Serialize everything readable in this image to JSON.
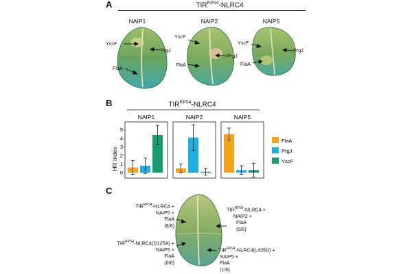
{
  "panel_a": {
    "letter": "A",
    "header_main": "TIR",
    "header_sup": "RPS4",
    "header_rest": "-NLRC4",
    "leaves": [
      {
        "title": "NAIP1",
        "labels": [
          "YscF",
          "PrgJ",
          "FlaA"
        ]
      },
      {
        "title": "NAIP2",
        "labels": [
          "YscF",
          "PrgJ",
          "FlaA"
        ]
      },
      {
        "title": "NAIP5",
        "labels": [
          "YscF",
          "PrgJ",
          "FlaA"
        ]
      }
    ]
  },
  "panel_b": {
    "letter": "B",
    "header_main": "TIR",
    "header_sup": "RPS4",
    "header_rest": "-NLRC4",
    "ylabel": "HR Index",
    "yticks": [
      "0",
      "1",
      "2",
      "3",
      "4",
      "5"
    ],
    "legend": [
      "FlaA",
      "PrgJ",
      "YscF"
    ]
  },
  "chart_data": {
    "type": "bar",
    "ylabel": "HR Index",
    "ylim": [
      0,
      5.6
    ],
    "panels": [
      "NAIP1",
      "NAIP2",
      "NAIP5"
    ],
    "series": [
      {
        "name": "FlaA",
        "color": "#f2a51c",
        "values": [
          0.6,
          0.5,
          4.5
        ],
        "errors": [
          0.8,
          0.5,
          0.7
        ]
      },
      {
        "name": "PrgJ",
        "color": "#1fb0de",
        "values": [
          0.8,
          4.1,
          0.3
        ],
        "errors": [
          0.9,
          1.5,
          0.5
        ]
      },
      {
        "name": "YscF",
        "color": "#1a9b72",
        "values": [
          4.4,
          0.1,
          0.3
        ],
        "errors": [
          1.1,
          0.4,
          0.8
        ]
      }
    ],
    "legend_position": "right"
  },
  "panel_c": {
    "letter": "C",
    "top_left": [
      "-NLRC4 +",
      "NAIP5 +",
      "FlaA",
      "(6/6)"
    ],
    "top_right": [
      "-NLRC4 +",
      "NAIP2 +",
      "FlaA",
      "(0/6)"
    ],
    "bottom_left": [
      "-NLRC4(D125A) +",
      "NAIP5 +",
      "FlaA",
      "(0/6)"
    ],
    "bottom_right": [
      "-NLRC4(L435D) +",
      "NAIP5 +",
      "FlaA",
      "(1/6)"
    ],
    "tir": "TIR",
    "sup": "RPS4"
  },
  "colors": {
    "flaA": "#f2a51c",
    "prgJ": "#1fb0de",
    "yscF": "#1a9b72",
    "leaf": "#5f9a54"
  }
}
